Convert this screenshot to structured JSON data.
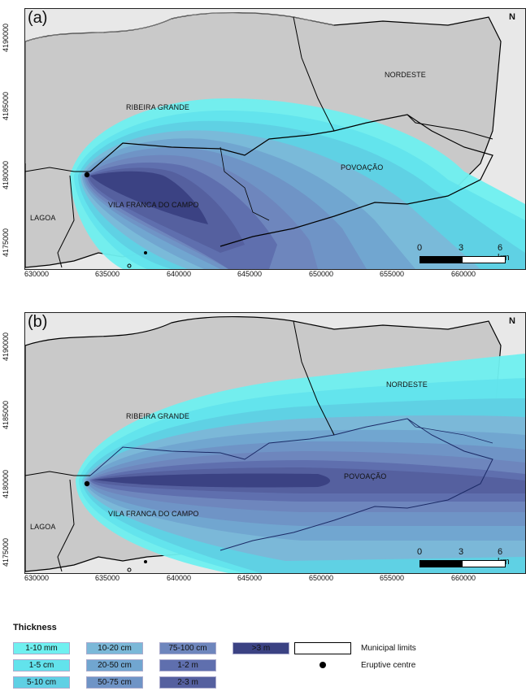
{
  "panels": [
    {
      "tag": "(a)",
      "places": {
        "nordeste": "NORDESTE",
        "ribeira": "RIBEIRA GRANDE",
        "povoacao": "POVOAÇÃO",
        "vila": "VILA FRANCA DO CAMPO",
        "lagoa": "LAGOA"
      }
    },
    {
      "tag": "(b)",
      "places": {
        "nordeste": "NORDESTE",
        "ribeira": "RIBEIRA GRANDE",
        "povoacao": "POVOAÇÃO",
        "vila": "VILA FRANCA DO CAMPO",
        "lagoa": "LAGOA"
      }
    }
  ],
  "north_label": "N",
  "scale": {
    "t0": "0",
    "t1": "3",
    "t2": "6 km"
  },
  "y_ticks": [
    "4190000",
    "4185000",
    "4180000",
    "4175000"
  ],
  "x_ticks": [
    "630000",
    "635000",
    "640000",
    "645000",
    "650000",
    "655000",
    "660000"
  ],
  "legend": {
    "title": "Thickness",
    "items": [
      {
        "label": "1-10 mm",
        "color": "#6ff0f0"
      },
      {
        "label": "1-5 cm",
        "color": "#62e3ec"
      },
      {
        "label": "5-10 cm",
        "color": "#5fd0e4"
      },
      {
        "label": "10-20 cm",
        "color": "#7bb8d8"
      },
      {
        "label": "20-50 cm",
        "color": "#71a6d0"
      },
      {
        "label": "50-75 cm",
        "color": "#6f94c6"
      },
      {
        "label": "75-100 cm",
        "color": "#6e86bd"
      },
      {
        "label": "1-2 m",
        "color": "#5f6fae"
      },
      {
        "label": "2-3 m",
        "color": "#55609f"
      },
      {
        "label": ">3 m",
        "color": "#3b4283"
      }
    ],
    "municipal": "Municipal limits",
    "eruptive": "Eruptive centre"
  }
}
